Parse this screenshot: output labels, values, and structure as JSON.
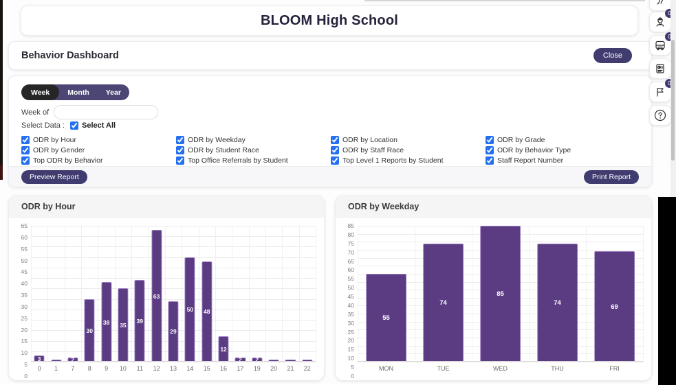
{
  "app": {
    "school_title": "BLOOM High School",
    "dashboard_title": "Behavior Dashboard",
    "close_label": "Close"
  },
  "filters": {
    "tabs": [
      {
        "label": "Week",
        "active": true
      },
      {
        "label": "Month",
        "active": false
      },
      {
        "label": "Year",
        "active": false
      }
    ],
    "week_of_label": "Week of",
    "week_of_value": "",
    "select_data_label": "Select Data :",
    "select_all_label": "Select All",
    "select_all_checked": true,
    "checkbox_columns": [
      [
        "ODR by Hour",
        "ODR by Gender",
        "Top ODR by Behavior"
      ],
      [
        "ODR by Weekday",
        "ODR by Student Race",
        "Top Office Referrals by Student"
      ],
      [
        "ODR by Location",
        "ODR by Staff Race",
        "Top Level 1 Reports by Student"
      ],
      [
        "ODR by Grade",
        "ODR by Behavior Type",
        "Staff Report Number"
      ]
    ],
    "preview_button": "Preview Report",
    "print_button": "Print Report"
  },
  "sidebar": {
    "icons": [
      {
        "name": "partial-top-icon",
        "badge": null
      },
      {
        "name": "driver-icon",
        "badge": "0"
      },
      {
        "name": "bus-icon",
        "badge": "0"
      },
      {
        "name": "journal-icon",
        "badge": null
      },
      {
        "name": "flag-icon",
        "badge": "0"
      },
      {
        "name": "help-icon",
        "badge": null
      }
    ]
  },
  "colors": {
    "bar_fill": "#5b3c83",
    "bar_border": "#9a7cc0",
    "accent_button": "#403c6f",
    "tab_pill": "#4b4673",
    "tab_active": "#262626",
    "checkbox_blue": "#2470f0",
    "badge": "#3e3a6d"
  },
  "chart_data": [
    {
      "type": "bar",
      "title": "ODR by Hour",
      "categories": [
        "0",
        "1",
        "7",
        "8",
        "9",
        "10",
        "11",
        "12",
        "13",
        "14",
        "15",
        "16",
        "17",
        "19",
        "20",
        "21",
        "22"
      ],
      "values": [
        3,
        1,
        2,
        30,
        38,
        35,
        39,
        63,
        29,
        50,
        48,
        12,
        2,
        2,
        1,
        1,
        1
      ],
      "xlabel": "",
      "ylabel": "",
      "ylim": [
        0,
        65
      ],
      "ytick_step": 5,
      "grid": true,
      "legend": "none",
      "bar_color": "#5b3c83",
      "label_color": "#ffffff"
    },
    {
      "type": "bar",
      "title": "ODR by Weekday",
      "categories": [
        "MON",
        "TUE",
        "WED",
        "THU",
        "FRI"
      ],
      "values": [
        55,
        74,
        85,
        74,
        69
      ],
      "xlabel": "",
      "ylabel": "",
      "ylim": [
        0,
        85
      ],
      "ytick_step": 5,
      "grid": true,
      "legend": "none",
      "bar_color": "#5b3c83",
      "label_color": "#ffffff"
    }
  ]
}
